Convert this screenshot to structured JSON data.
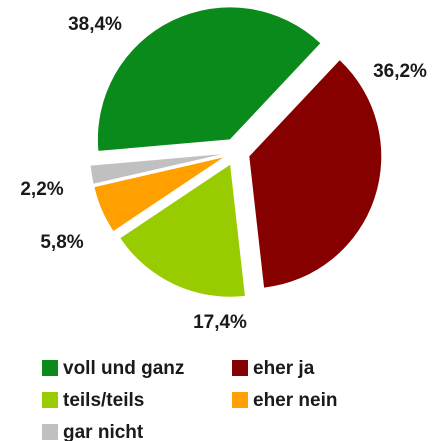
{
  "chart_data": {
    "type": "pie",
    "categories": [
      "voll und ganz",
      "eher ja",
      "teils/teils",
      "eher nein",
      "gar nicht"
    ],
    "values": [
      38.4,
      36.2,
      17.4,
      5.8,
      2.2
    ],
    "value_labels": [
      "38,4%",
      "36,2%",
      "17,4%",
      "5,8%",
      "2,2%"
    ],
    "colors": [
      "#0a8a1a",
      "#870000",
      "#99cc00",
      "#ffa000",
      "#c0c0c0"
    ],
    "exploded": true
  }
}
